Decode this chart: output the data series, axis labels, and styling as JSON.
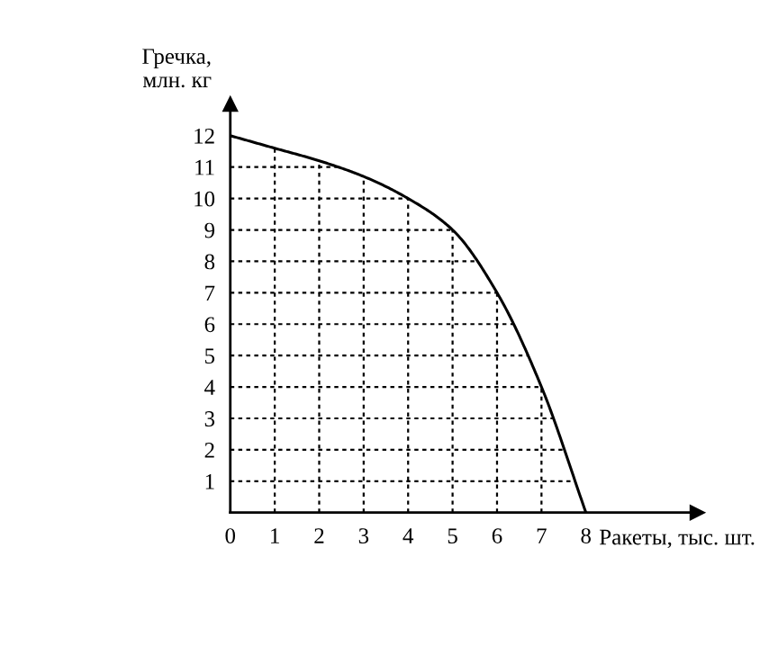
{
  "chart_data": {
    "type": "line",
    "ylabel": "Гречка,\nмлн. кг",
    "xlabel": "Ракеты, тыс. шт.",
    "x": [
      0,
      1,
      2,
      3,
      4,
      5,
      6,
      7,
      8
    ],
    "series": [
      {
        "color": "#000000",
        "values": [
          12,
          11.6,
          11.2,
          10.7,
          10,
          9,
          7,
          4,
          0
        ]
      }
    ],
    "xlim": [
      0,
      10.5
    ],
    "ylim": [
      0,
      13
    ],
    "xticks": [
      0,
      1,
      2,
      3,
      4,
      5,
      6,
      7,
      8
    ],
    "yticks": [
      1,
      2,
      3,
      4,
      5,
      6,
      7,
      8,
      9,
      10,
      11,
      12
    ],
    "grid": true,
    "marker": "none",
    "line_style": "solid"
  }
}
